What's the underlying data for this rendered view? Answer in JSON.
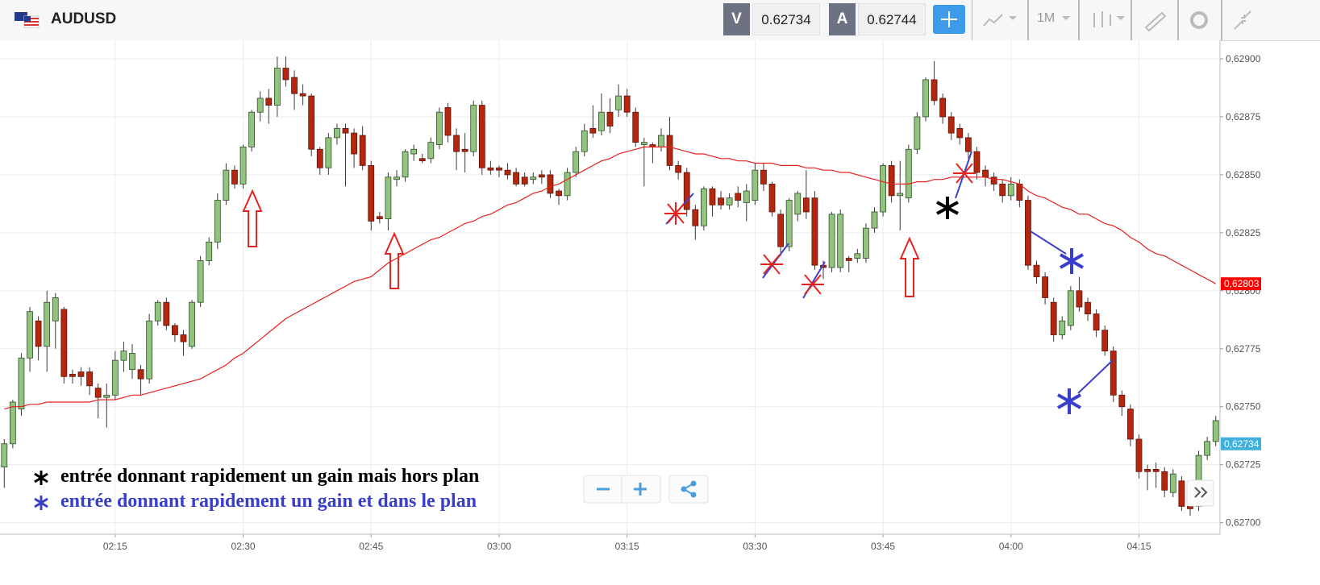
{
  "header": {
    "symbol": "AUDUSD",
    "bid_label": "V",
    "bid": 0.62734,
    "ask_label": "A",
    "ask": 0.62744,
    "timeframe": "1M"
  },
  "chart_data": {
    "type": "candlestick",
    "title": "AUDUSD",
    "x": [
      "02:02",
      "02:03",
      "02:04",
      "02:05",
      "02:06",
      "02:07",
      "02:08",
      "02:09",
      "02:10",
      "02:11",
      "02:12",
      "02:13",
      "02:14",
      "02:15",
      "02:16",
      "02:17",
      "02:18",
      "02:19",
      "02:20",
      "02:21",
      "02:22",
      "02:23",
      "02:24",
      "02:25",
      "02:26",
      "02:27",
      "02:28",
      "02:29",
      "02:30",
      "02:31",
      "02:32",
      "02:33",
      "02:34",
      "02:35",
      "02:36",
      "02:37",
      "02:38",
      "02:39",
      "02:40",
      "02:41",
      "02:42",
      "02:43",
      "02:44",
      "02:45",
      "02:46",
      "02:47",
      "02:48",
      "02:49",
      "02:50",
      "02:51",
      "02:52",
      "02:53",
      "02:54",
      "02:55",
      "02:56",
      "02:57",
      "02:58",
      "02:59",
      "03:00",
      "03:01",
      "03:02",
      "03:03",
      "03:04",
      "03:05",
      "03:06",
      "03:07",
      "03:08",
      "03:09",
      "03:10",
      "03:11",
      "03:12",
      "03:13",
      "03:14",
      "03:15",
      "03:16",
      "03:17",
      "03:18",
      "03:19",
      "03:20",
      "03:21",
      "03:22",
      "03:23",
      "03:24",
      "03:25",
      "03:26",
      "03:27",
      "03:28",
      "03:29",
      "03:30",
      "03:31",
      "03:32",
      "03:33",
      "03:34",
      "03:35",
      "03:36",
      "03:37",
      "03:38",
      "03:39",
      "03:40",
      "03:41",
      "03:42",
      "03:43",
      "03:44",
      "03:45",
      "03:46",
      "03:47",
      "03:48",
      "03:49",
      "03:50",
      "03:51",
      "03:52",
      "03:53",
      "03:54",
      "03:55",
      "03:56",
      "03:57",
      "03:58",
      "03:59",
      "04:00",
      "04:01",
      "04:02",
      "04:03",
      "04:04",
      "04:05",
      "04:06",
      "04:07",
      "04:08",
      "04:09",
      "04:10",
      "04:11",
      "04:12",
      "04:13",
      "04:14",
      "04:15",
      "04:16",
      "04:17",
      "04:18",
      "04:19",
      "04:20",
      "04:21",
      "04:22",
      "04:23",
      "04:24"
    ],
    "open": [
      0.62724,
      0.62734,
      0.62749,
      0.62771,
      0.62787,
      0.62776,
      0.62787,
      0.62792,
      0.62764,
      0.62765,
      0.62765,
      0.62758,
      0.62754,
      0.62755,
      0.6277,
      0.62766,
      0.62766,
      0.62762,
      0.62787,
      0.62795,
      0.62785,
      0.62781,
      0.62776,
      0.62795,
      0.62813,
      0.62821,
      0.62839,
      0.62852,
      0.62846,
      0.62862,
      0.62877,
      0.62883,
      0.6288,
      0.62896,
      0.62892,
      0.62885,
      0.62884,
      0.62861,
      0.62853,
      0.62866,
      0.6287,
      0.62868,
      0.62867,
      0.62854,
      0.62832,
      0.62831,
      0.62848,
      0.62849,
      0.62859,
      0.62857,
      0.62857,
      0.62863,
      0.62879,
      0.62867,
      0.62861,
      0.6286,
      0.6288,
      0.62853,
      0.62853,
      0.62852,
      0.62851,
      0.62849,
      0.62848,
      0.6285,
      0.6285,
      0.62843,
      0.62841,
      0.62851,
      0.6286,
      0.6287,
      0.62869,
      0.62877,
      0.62878,
      0.62884,
      0.62877,
      0.62863,
      0.62863,
      0.62862,
      0.62867,
      0.62854,
      0.62851,
      0.62835,
      0.62828,
      0.62844,
      0.6284,
      0.62837,
      0.62842,
      0.62838,
      0.62839,
      0.62852,
      0.62846,
      0.62833,
      0.62819,
      0.62833,
      0.6284,
      0.6284,
      0.62811,
      0.6281,
      0.6281,
      0.62814,
      0.62814,
      0.62814,
      0.62827,
      0.62834,
      0.62854,
      0.62841,
      0.6284,
      0.62861,
      0.62875,
      0.62891,
      0.62883,
      0.62875,
      0.6287,
      0.62866,
      0.6286,
      0.62852,
      0.62849,
      0.62846,
      0.62841,
      0.62846,
      0.62839,
      0.62811,
      0.62806,
      0.62795,
      0.62781,
      0.62785,
      0.628,
      0.62795,
      0.6279,
      0.62783,
      0.62774,
      0.62755,
      0.62749,
      0.62736,
      0.62723,
      0.62723,
      0.62722,
      0.62713,
      0.62718,
      0.62707,
      0.62707,
      0.62729,
      0.62735
    ],
    "high": [
      0.62736,
      0.62753,
      0.62773,
      0.62793,
      0.62789,
      0.628,
      0.62799,
      0.62793,
      0.62766,
      0.62767,
      0.62767,
      0.6276,
      0.6276,
      0.62774,
      0.62778,
      0.62777,
      0.62768,
      0.6279,
      0.62796,
      0.62797,
      0.62786,
      0.62783,
      0.62796,
      0.62815,
      0.62823,
      0.62842,
      0.62855,
      0.62854,
      0.62863,
      0.62878,
      0.62886,
      0.62887,
      0.62901,
      0.62901,
      0.62895,
      0.62889,
      0.62885,
      0.62862,
      0.62868,
      0.62872,
      0.62872,
      0.6287,
      0.62871,
      0.62856,
      0.62834,
      0.62851,
      0.62852,
      0.62861,
      0.62863,
      0.62859,
      0.62866,
      0.62879,
      0.62881,
      0.6287,
      0.62868,
      0.62882,
      0.62882,
      0.62856,
      0.62854,
      0.62855,
      0.62853,
      0.62851,
      0.62851,
      0.62852,
      0.62852,
      0.62844,
      0.62853,
      0.62862,
      0.62872,
      0.6288,
      0.62885,
      0.62883,
      0.62889,
      0.62887,
      0.62879,
      0.62866,
      0.62864,
      0.6287,
      0.62875,
      0.62856,
      0.62853,
      0.62837,
      0.62845,
      0.62845,
      0.62843,
      0.62842,
      0.62845,
      0.62846,
      0.62855,
      0.62855,
      0.62847,
      0.62835,
      0.6284,
      0.62843,
      0.62852,
      0.62843,
      0.62813,
      0.62834,
      0.62835,
      0.62815,
      0.62818,
      0.62829,
      0.62836,
      0.62855,
      0.62856,
      0.62856,
      0.62863,
      0.62877,
      0.62892,
      0.62899,
      0.62885,
      0.62877,
      0.62872,
      0.62868,
      0.62862,
      0.62854,
      0.62851,
      0.62848,
      0.62849,
      0.62848,
      0.62841,
      0.62813,
      0.62808,
      0.62797,
      0.62789,
      0.62802,
      0.62806,
      0.62797,
      0.62792,
      0.62785,
      0.62776,
      0.62757,
      0.62751,
      0.62738,
      0.62725,
      0.62726,
      0.62724,
      0.62723,
      0.6272,
      0.62708,
      0.62731,
      0.62737,
      0.62746
    ],
    "low": [
      0.62715,
      0.62732,
      0.62746,
      0.62765,
      0.6277,
      0.62765,
      0.62775,
      0.6276,
      0.6276,
      0.62759,
      0.62755,
      0.62745,
      0.62741,
      0.62753,
      0.62765,
      0.62762,
      0.62755,
      0.6276,
      0.62785,
      0.62783,
      0.62778,
      0.62772,
      0.62775,
      0.62793,
      0.62811,
      0.62818,
      0.62837,
      0.62844,
      0.62844,
      0.6286,
      0.62873,
      0.62872,
      0.62875,
      0.62888,
      0.62878,
      0.6288,
      0.62858,
      0.6285,
      0.6285,
      0.62863,
      0.62845,
      0.62853,
      0.62852,
      0.62826,
      0.62829,
      0.62826,
      0.62845,
      0.62847,
      0.62856,
      0.62855,
      0.62855,
      0.62861,
      0.62864,
      0.62852,
      0.62851,
      0.62858,
      0.6285,
      0.6285,
      0.62849,
      0.62848,
      0.62845,
      0.62845,
      0.62846,
      0.62846,
      0.6284,
      0.62837,
      0.62839,
      0.62849,
      0.62858,
      0.62866,
      0.62867,
      0.62868,
      0.62875,
      0.62875,
      0.62862,
      0.62845,
      0.62855,
      0.6286,
      0.62852,
      0.62848,
      0.62832,
      0.62822,
      0.62826,
      0.62832,
      0.62835,
      0.62835,
      0.62836,
      0.6283,
      0.62837,
      0.62843,
      0.62832,
      0.62815,
      0.62817,
      0.6283,
      0.62831,
      0.62809,
      0.62805,
      0.62808,
      0.62808,
      0.62808,
      0.62812,
      0.62812,
      0.62825,
      0.62832,
      0.62838,
      0.62826,
      0.62838,
      0.62859,
      0.62873,
      0.6288,
      0.62872,
      0.62865,
      0.62863,
      0.62857,
      0.62848,
      0.62845,
      0.62843,
      0.62838,
      0.62839,
      0.62836,
      0.62809,
      0.62803,
      0.62794,
      0.62778,
      0.62779,
      0.62783,
      0.62791,
      0.62787,
      0.6278,
      0.62772,
      0.62752,
      0.62746,
      0.62733,
      0.62719,
      0.62714,
      0.62715,
      0.62711,
      0.62711,
      0.62705,
      0.62703,
      0.62705,
      0.62727,
      0.62733
    ],
    "close": [
      0.62734,
      0.62752,
      0.62771,
      0.62791,
      0.62776,
      0.62795,
      0.62797,
      0.62763,
      0.62763,
      0.62763,
      0.62759,
      0.62754,
      0.62755,
      0.6277,
      0.62774,
      0.62773,
      0.62762,
      0.62787,
      0.62795,
      0.62785,
      0.62781,
      0.62778,
      0.62795,
      0.62813,
      0.62821,
      0.62839,
      0.62852,
      0.62846,
      0.62862,
      0.62877,
      0.62883,
      0.6288,
      0.62896,
      0.62891,
      0.62885,
      0.62884,
      0.62861,
      0.62853,
      0.62866,
      0.6287,
      0.62868,
      0.62859,
      0.62854,
      0.6283,
      0.62831,
      0.62849,
      0.62849,
      0.6286,
      0.62861,
      0.62856,
      0.62864,
      0.62877,
      0.62867,
      0.6286,
      0.6286,
      0.6288,
      0.62853,
      0.62852,
      0.62852,
      0.6285,
      0.62846,
      0.62846,
      0.62849,
      0.62849,
      0.62842,
      0.62841,
      0.62851,
      0.6286,
      0.62869,
      0.62868,
      0.62877,
      0.62871,
      0.62884,
      0.62877,
      0.62864,
      0.62864,
      0.62862,
      0.62867,
      0.62854,
      0.62851,
      0.62835,
      0.62828,
      0.62844,
      0.62837,
      0.62837,
      0.6284,
      0.62839,
      0.62843,
      0.62852,
      0.62846,
      0.62834,
      0.62819,
      0.62839,
      0.62842,
      0.62834,
      0.62811,
      0.6281,
      0.62833,
      0.62833,
      0.62813,
      0.62816,
      0.62827,
      0.62834,
      0.62854,
      0.62841,
      0.62842,
      0.62861,
      0.62875,
      0.62891,
      0.62882,
      0.62875,
      0.62868,
      0.62866,
      0.6286,
      0.62851,
      0.62849,
      0.62846,
      0.62841,
      0.62846,
      0.62839,
      0.62811,
      0.62806,
      0.62797,
      0.62781,
      0.62787,
      0.628,
      0.62793,
      0.6279,
      0.62783,
      0.62774,
      0.62755,
      0.6275,
      0.62736,
      0.62722,
      0.62722,
      0.62722,
      0.62714,
      0.62721,
      0.62707,
      0.62706,
      0.62729,
      0.62735,
      0.62744
    ],
    "up_color": "#92c47f",
    "down_color": "#b5260e",
    "ma": {
      "type": "line",
      "color": "#e8201c",
      "values": [
        0.62749,
        0.6275,
        0.6275,
        0.62751,
        0.62751,
        0.62752,
        0.62752,
        0.62752,
        0.62752,
        0.62752,
        0.62752,
        0.62753,
        0.62753,
        0.62753,
        0.62754,
        0.62755,
        0.62755,
        0.62756,
        0.62757,
        0.62758,
        0.62759,
        0.6276,
        0.62761,
        0.62762,
        0.62764,
        0.62766,
        0.62768,
        0.62771,
        0.62773,
        0.62776,
        0.62779,
        0.62782,
        0.62785,
        0.62788,
        0.6279,
        0.62792,
        0.62794,
        0.62796,
        0.62798,
        0.628,
        0.62802,
        0.62804,
        0.62805,
        0.62806,
        0.62809,
        0.62812,
        0.62814,
        0.62816,
        0.62818,
        0.6282,
        0.62822,
        0.62823,
        0.62825,
        0.62827,
        0.62829,
        0.6283,
        0.62832,
        0.62833,
        0.62835,
        0.62837,
        0.62838,
        0.6284,
        0.62842,
        0.62843,
        0.62845,
        0.62846,
        0.62848,
        0.6285,
        0.62852,
        0.62854,
        0.62856,
        0.62857,
        0.62859,
        0.6286,
        0.62861,
        0.62862,
        0.62862,
        0.62862,
        0.62862,
        0.62861,
        0.6286,
        0.62859,
        0.62859,
        0.62858,
        0.62857,
        0.62857,
        0.62856,
        0.62856,
        0.62855,
        0.62855,
        0.62855,
        0.62854,
        0.62854,
        0.62854,
        0.62853,
        0.62853,
        0.62852,
        0.62852,
        0.62851,
        0.62851,
        0.6285,
        0.62849,
        0.62848,
        0.62847,
        0.62846,
        0.62846,
        0.62846,
        0.62847,
        0.62847,
        0.62848,
        0.62848,
        0.62849,
        0.62849,
        0.62849,
        0.62849,
        0.62849,
        0.62848,
        0.62848,
        0.62847,
        0.62846,
        0.62843,
        0.62841,
        0.6284,
        0.62838,
        0.62836,
        0.62835,
        0.62833,
        0.62833,
        0.62831,
        0.62829,
        0.62828,
        0.62826,
        0.62823,
        0.62821,
        0.62818,
        0.62816,
        0.62815,
        0.62813,
        0.62811,
        0.62809,
        0.62807,
        0.62805,
        0.62803
      ]
    },
    "ylim": [
      0.62695,
      0.62908
    ],
    "yticks": [
      {
        "value": 0.627,
        "label": "0,62700"
      },
      {
        "value": 0.62725,
        "label": "0,62725"
      },
      {
        "value": 0.6275,
        "label": "0,62750"
      },
      {
        "value": 0.62775,
        "label": "0,62775"
      },
      {
        "value": 0.628,
        "label": "0,62800"
      },
      {
        "value": 0.62825,
        "label": "0,62825"
      },
      {
        "value": 0.6285,
        "label": "0,62850"
      },
      {
        "value": 0.62875,
        "label": "0,62875"
      },
      {
        "value": 0.629,
        "label": "0,62900"
      }
    ],
    "xticks": [
      "02:15",
      "02:30",
      "02:45",
      "03:00",
      "03:15",
      "03:30",
      "03:45",
      "04:00",
      "04:15"
    ],
    "grid": true,
    "price_labels": [
      {
        "value": 0.62803,
        "label": "0,62803",
        "color": "#ff0000"
      },
      {
        "value": 0.62734,
        "label": "0,62734",
        "color": "#3fb0dc"
      }
    ],
    "annotations": [
      "entrée donnant rapidement un gain mais hors plan",
      "entrée donnant rapidement un gain et dans le plan"
    ]
  }
}
